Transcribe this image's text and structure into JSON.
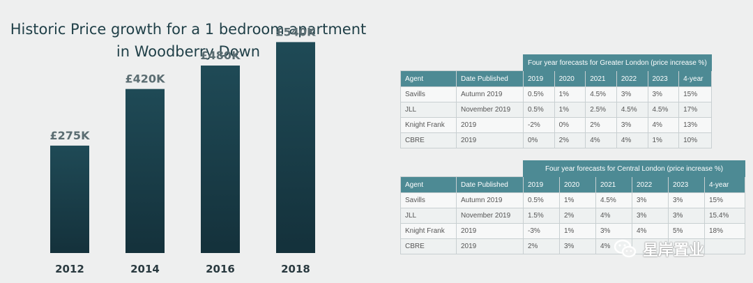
{
  "chart_data": {
    "type": "bar",
    "title": "Historic Price growth for a 1 bedroom apartment in Woodberry Down",
    "title_lines": [
      "Historic Price growth for a 1 bedroom apartment",
      "in Woodberry Down"
    ],
    "categories": [
      "2012",
      "2014",
      "2016",
      "2018"
    ],
    "values": [
      275,
      420,
      480,
      540
    ],
    "value_labels": [
      "£275K",
      "£420K",
      "£480K",
      "£540K"
    ],
    "ylim": [
      0,
      580
    ],
    "bar_color": "#1a3e4a",
    "grid": false
  },
  "tables": [
    {
      "caption": "Four year forecasts for Greater London (price increase %)",
      "headers": [
        "Agent",
        "Date Published",
        "2019",
        "2020",
        "2021",
        "2022",
        "2023",
        "4-year"
      ],
      "rows": [
        [
          "Savills",
          "Autumn 2019",
          "0.5%",
          "1%",
          "4.5%",
          "3%",
          "3%",
          "15%"
        ],
        [
          "JLL",
          "November 2019",
          "0.5%",
          "1%",
          "2.5%",
          "4.5%",
          "4.5%",
          "17%"
        ],
        [
          "Knight Frank",
          "2019",
          "-2%",
          "0%",
          "2%",
          "3%",
          "4%",
          "13%"
        ],
        [
          "CBRE",
          "2019",
          "0%",
          "2%",
          "4%",
          "4%",
          "1%",
          "10%"
        ]
      ]
    },
    {
      "caption": "Four year forecasts for Central London (price increase %)",
      "headers": [
        "Agent",
        "Date Published",
        "2019",
        "2020",
        "2021",
        "2022",
        "2023",
        "4-year"
      ],
      "rows": [
        [
          "Savills",
          "Autumn 2019",
          "0.5%",
          "1%",
          "4.5%",
          "3%",
          "3%",
          "15%"
        ],
        [
          "JLL",
          "November 2019",
          "1.5%",
          "2%",
          "4%",
          "3%",
          "3%",
          "15.4%"
        ],
        [
          "Knight Frank",
          "2019",
          "-3%",
          "1%",
          "3%",
          "4%",
          "5%",
          "18%"
        ],
        [
          "CBRE",
          "2019",
          "2%",
          "3%",
          "4%",
          "",
          "",
          ""
        ]
      ]
    }
  ],
  "watermark": {
    "text": "星岸置业",
    "icon": "wechat-icon"
  },
  "colors": {
    "header_bg": "#4d8a94",
    "bar": "#1a3e4a",
    "title": "#1f3f47"
  }
}
